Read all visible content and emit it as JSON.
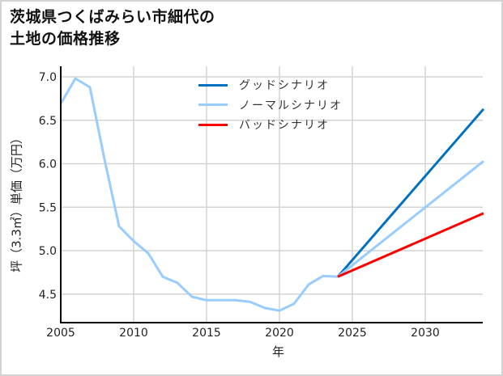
{
  "title_lines": [
    "茨城県つくばみらい市細代の",
    "土地の価格推移"
  ],
  "axes": {
    "xlabel": "年",
    "ylabel": "坪（3.3㎡）単価（万円）",
    "xticks": [
      "2005",
      "2010",
      "2015",
      "2020",
      "2025",
      "2030"
    ],
    "yticks": [
      "4.5",
      "5.0",
      "5.5",
      "6.0",
      "6.5",
      "7.0"
    ]
  },
  "legend": [
    {
      "label": "グッドシナリオ",
      "color": "#0070c0"
    },
    {
      "label": "ノーマルシナリオ",
      "color": "#99ccff"
    },
    {
      "label": "バッドシナリオ",
      "color": "#ff0000"
    }
  ],
  "chart_data": {
    "type": "line",
    "title": "茨城県つくばみらい市細代の土地の価格推移",
    "xlabel": "年",
    "ylabel": "坪（3.3㎡）単価（万円）",
    "xlim": [
      2005,
      2034
    ],
    "ylim": [
      4.2,
      7.1
    ],
    "grid": true,
    "legend_position": "upper center",
    "series": [
      {
        "name": "ノーマルシナリオ (historical)",
        "color": "#99ccff",
        "x": [
          2005,
          2006,
          2007,
          2008,
          2009,
          2010,
          2011,
          2012,
          2013,
          2014,
          2015,
          2016,
          2017,
          2018,
          2019,
          2020,
          2021,
          2022,
          2023,
          2024
        ],
        "values": [
          6.69,
          6.98,
          6.88,
          6.05,
          5.28,
          5.11,
          4.97,
          4.7,
          4.63,
          4.47,
          4.43,
          4.43,
          4.43,
          4.41,
          4.34,
          4.31,
          4.39,
          4.61,
          4.71,
          4.7
        ]
      },
      {
        "name": "グッドシナリオ",
        "color": "#0070c0",
        "x": [
          2024,
          2034
        ],
        "values": [
          4.7,
          6.63
        ]
      },
      {
        "name": "ノーマルシナリオ",
        "color": "#99ccff",
        "x": [
          2024,
          2034
        ],
        "values": [
          4.7,
          6.03
        ]
      },
      {
        "name": "バッドシナリオ",
        "color": "#ff0000",
        "x": [
          2024,
          2034
        ],
        "values": [
          4.7,
          5.43
        ]
      }
    ]
  }
}
